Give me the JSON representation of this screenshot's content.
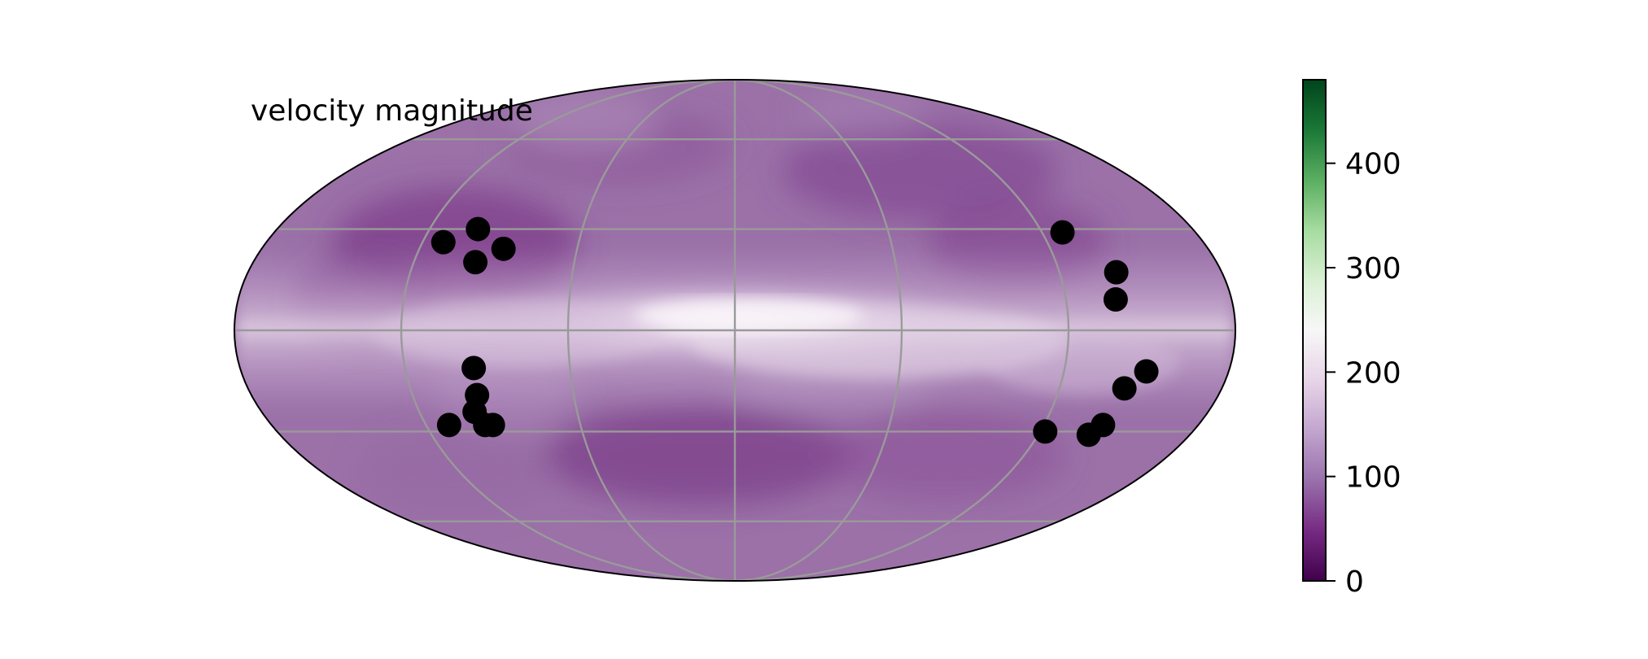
{
  "chart_data": {
    "type": "heatmap",
    "projection": "mollweide",
    "title": "velocity magnitude",
    "grid": true,
    "longitude_range": [
      -180,
      180
    ],
    "latitude_range": [
      -90,
      90
    ],
    "colorbar": {
      "colormap": "PRGn",
      "range": [
        0,
        480
      ],
      "ticks": [
        0,
        100,
        200,
        300,
        400
      ],
      "tick_labels": [
        "0",
        "100",
        "200",
        "300",
        "400"
      ],
      "colors": [
        "#40004b",
        "#762a83",
        "#9970ab",
        "#c2a5cf",
        "#e7d4e8",
        "#f7f7f7",
        "#d9f0d3",
        "#a6dba0",
        "#5aae61",
        "#1b7837",
        "#00441b"
      ]
    },
    "field": {
      "background_value": 90,
      "band_peak_value": 235,
      "band_description": "brighter along the equator, peak near the centre"
    },
    "points": [
      {
        "lon": -112,
        "lat": 26
      },
      {
        "lon": -101,
        "lat": 30
      },
      {
        "lon": -97,
        "lat": 20
      },
      {
        "lon": -88,
        "lat": 24
      },
      {
        "lon": -95,
        "lat": -11
      },
      {
        "lon": -96,
        "lat": -19
      },
      {
        "lon": -99,
        "lat": -24
      },
      {
        "lon": -97,
        "lat": -28
      },
      {
        "lon": -94,
        "lat": -28
      },
      {
        "lon": -111,
        "lat": -28
      },
      {
        "lon": 128,
        "lat": 29
      },
      {
        "lon": 141,
        "lat": 17
      },
      {
        "lon": 138,
        "lat": 9
      },
      {
        "lon": 150,
        "lat": -12
      },
      {
        "lon": 144,
        "lat": -17
      },
      {
        "lon": 143,
        "lat": -28
      },
      {
        "lon": 140,
        "lat": -31
      },
      {
        "lon": 122,
        "lat": -30
      }
    ],
    "point_color": "#000000",
    "grid_color": "#9a9a9a"
  }
}
